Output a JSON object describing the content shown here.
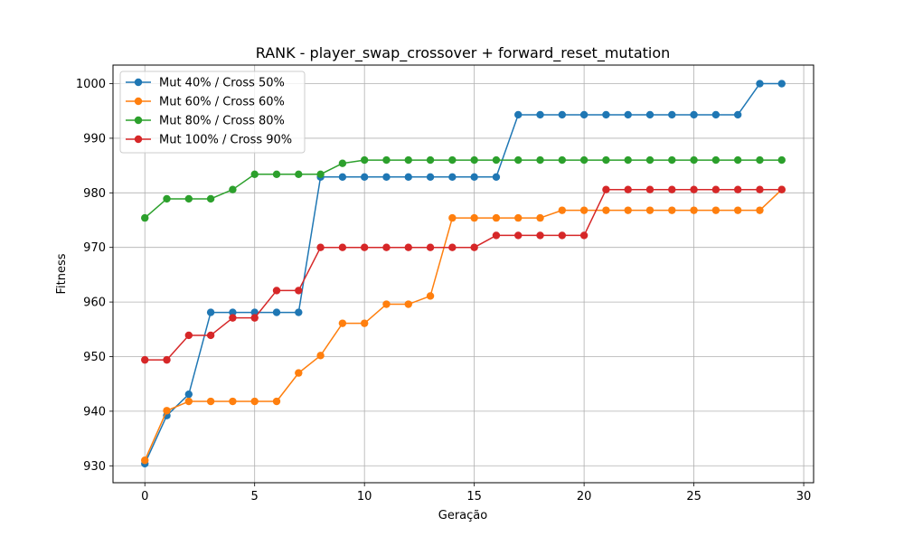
{
  "chart_data": {
    "type": "line",
    "title": "RANK - player_swap_crossover + forward_reset_mutation",
    "xlabel": "Geração",
    "ylabel": "Fitness",
    "xlim": [
      -1.45,
      30.45
    ],
    "ylim": [
      926.9,
      1003.4
    ],
    "xticks": [
      0,
      5,
      10,
      15,
      20,
      25,
      30
    ],
    "yticks": [
      930,
      940,
      950,
      960,
      970,
      980,
      990,
      1000
    ],
    "grid": true,
    "legend_position": "top-left",
    "x": [
      0,
      1,
      2,
      3,
      4,
      5,
      6,
      7,
      8,
      9,
      10,
      11,
      12,
      13,
      14,
      15,
      16,
      17,
      18,
      19,
      20,
      21,
      22,
      23,
      24,
      25,
      26,
      27,
      28,
      29
    ],
    "series": [
      {
        "name": "Mut 40% / Cross 50%",
        "color": "#1f77b4",
        "values": [
          930.4,
          939.2,
          943.1,
          958.1,
          958.1,
          958.1,
          958.1,
          958.1,
          982.9,
          982.9,
          982.9,
          982.9,
          982.9,
          982.9,
          982.9,
          982.9,
          982.9,
          994.3,
          994.3,
          994.3,
          994.3,
          994.3,
          994.3,
          994.3,
          994.3,
          994.3,
          994.3,
          994.3,
          1000.0,
          1000.0
        ]
      },
      {
        "name": "Mut 60% / Cross 60%",
        "color": "#ff7f0e",
        "values": [
          931.0,
          940.1,
          941.8,
          941.8,
          941.8,
          941.8,
          941.8,
          947.0,
          950.2,
          956.1,
          956.1,
          959.6,
          959.6,
          961.1,
          975.4,
          975.4,
          975.4,
          975.4,
          975.4,
          976.8,
          976.8,
          976.8,
          976.8,
          976.8,
          976.8,
          976.8,
          976.8,
          976.8,
          976.8,
          980.6
        ]
      },
      {
        "name": "Mut 80% / Cross 80%",
        "color": "#2ca02c",
        "values": [
          975.4,
          978.9,
          978.9,
          978.9,
          980.6,
          983.4,
          983.4,
          983.4,
          983.4,
          985.4,
          986.0,
          986.0,
          986.0,
          986.0,
          986.0,
          986.0,
          986.0,
          986.0,
          986.0,
          986.0,
          986.0,
          986.0,
          986.0,
          986.0,
          986.0,
          986.0,
          986.0,
          986.0,
          986.0,
          986.0
        ]
      },
      {
        "name": "Mut 100% / Cross 90%",
        "color": "#d62728",
        "values": [
          949.4,
          949.4,
          953.9,
          953.9,
          957.1,
          957.1,
          962.1,
          962.1,
          970.0,
          970.0,
          970.0,
          970.0,
          970.0,
          970.0,
          970.0,
          970.0,
          972.2,
          972.2,
          972.2,
          972.2,
          972.2,
          980.6,
          980.6,
          980.6,
          980.6,
          980.6,
          980.6,
          980.6,
          980.6,
          980.6
        ]
      }
    ]
  }
}
